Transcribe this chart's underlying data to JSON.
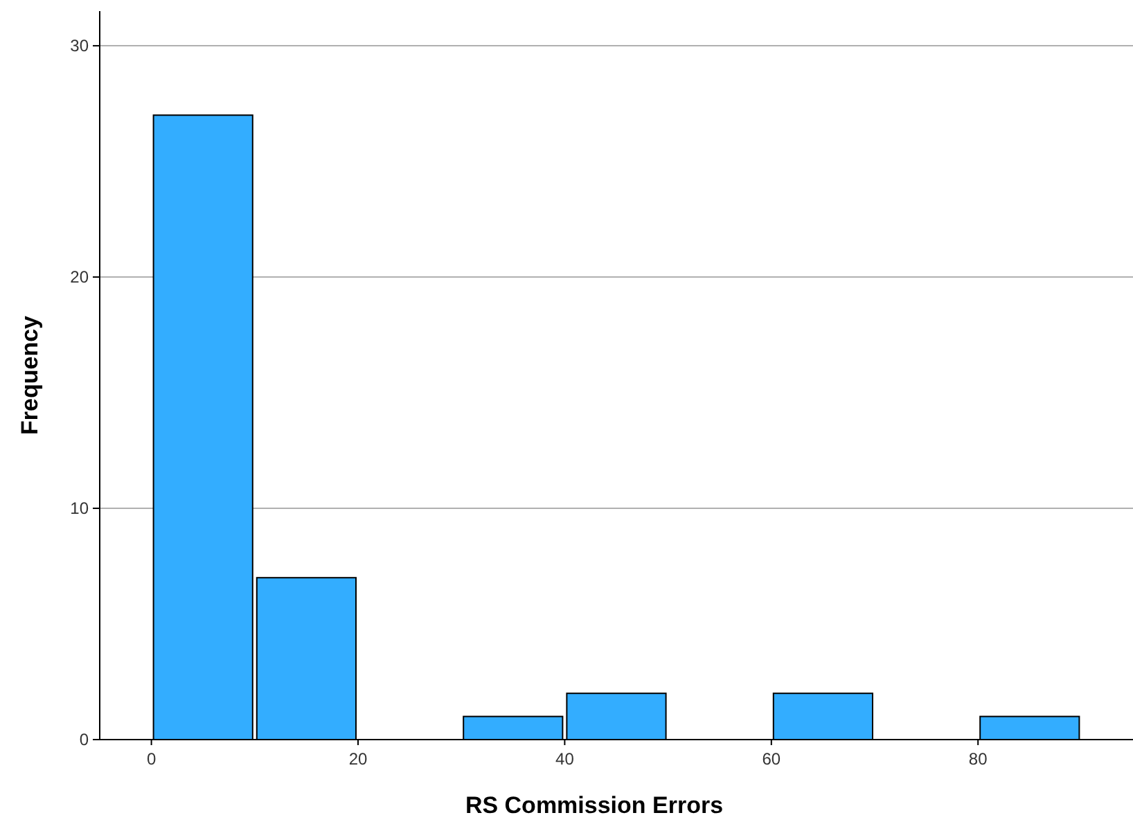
{
  "chart_data": {
    "type": "histogram",
    "xlabel": "RS Commission Errors",
    "ylabel": "Frequency",
    "bins": [
      0,
      10,
      20,
      30,
      40,
      50,
      60,
      70,
      80,
      90
    ],
    "values": [
      27,
      7,
      0,
      1,
      2,
      0,
      2,
      0,
      1
    ],
    "color": "#33adff",
    "xlim": [
      -5,
      95
    ],
    "ylim": [
      0,
      31.5
    ],
    "xticks": [
      0,
      20,
      40,
      60,
      80
    ],
    "yticks": [
      0,
      10,
      20,
      30
    ],
    "grid": "y"
  }
}
